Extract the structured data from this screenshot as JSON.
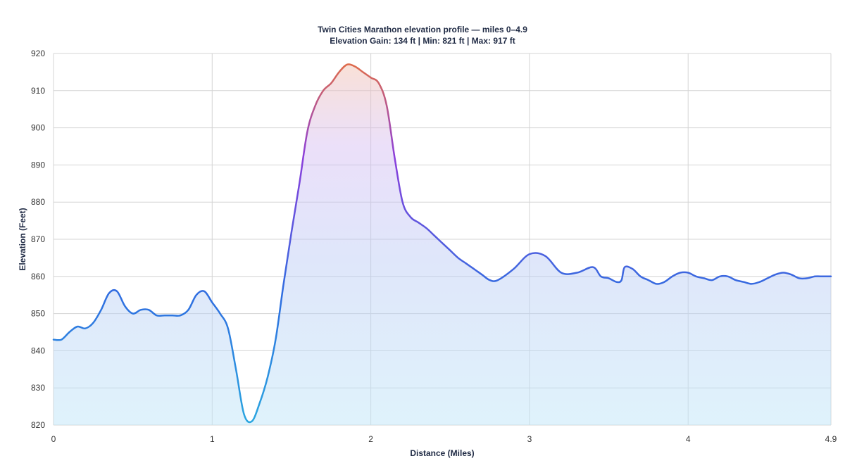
{
  "chart_data": {
    "type": "area",
    "title": "Twin Cities Marathon elevation profile — miles 0–4.9",
    "subtitle": "Elevation Gain: 134 ft | Min: 821 ft | Max: 917 ft",
    "xlabel": "Distance (Miles)",
    "ylabel": "Elevation (Feet)",
    "xlim": [
      0,
      4.9
    ],
    "ylim": [
      820,
      920
    ],
    "x_ticks": [
      0,
      1,
      2,
      3,
      4,
      4.9
    ],
    "x_tick_labels": [
      "0",
      "1",
      "2",
      "3",
      "4",
      "4.9"
    ],
    "y_ticks": [
      820,
      830,
      840,
      850,
      860,
      870,
      880,
      890,
      900,
      910,
      920
    ],
    "y_tick_labels": [
      "820",
      "830",
      "840",
      "850",
      "860",
      "870",
      "880",
      "890",
      "900",
      "910",
      "920"
    ],
    "grid": true,
    "legend": "none",
    "colors": {
      "low": "#2aa7e0",
      "mid": "#2f6ee0",
      "high_mid": "#8b3fdc",
      "peak": "#e8703a"
    },
    "series": [
      {
        "x": [
          0,
          0.05,
          0.1,
          0.15,
          0.2,
          0.25,
          0.3,
          0.35,
          0.4,
          0.45,
          0.5,
          0.55,
          0.6,
          0.65,
          0.7,
          0.75,
          0.8,
          0.85,
          0.9,
          0.95,
          1.0,
          1.05,
          1.1,
          1.15,
          1.2,
          1.25,
          1.3,
          1.35,
          1.4,
          1.45,
          1.5,
          1.55,
          1.6,
          1.65,
          1.7,
          1.75,
          1.8,
          1.85,
          1.9,
          1.95,
          2.0,
          2.05,
          2.1,
          2.15,
          2.2,
          2.25,
          2.3,
          2.35,
          2.4,
          2.45,
          2.5,
          2.55,
          2.6,
          2.65,
          2.7,
          2.75,
          2.8,
          2.9,
          3.0,
          3.1,
          3.2,
          3.3,
          3.4,
          3.45,
          3.5,
          3.55,
          3.58,
          3.6,
          3.65,
          3.7,
          3.75,
          3.8,
          3.85,
          3.9,
          3.95,
          4.0,
          4.05,
          4.1,
          4.15,
          4.2,
          4.25,
          4.3,
          4.35,
          4.4,
          4.45,
          4.5,
          4.55,
          4.6,
          4.65,
          4.7,
          4.75,
          4.8,
          4.85,
          4.9
        ],
        "values": [
          843,
          843,
          845,
          846.5,
          846,
          847.5,
          851,
          855.5,
          856,
          852,
          850,
          851,
          851,
          849.5,
          849.5,
          849.5,
          849.5,
          851,
          855,
          856,
          853,
          850,
          846,
          835,
          823,
          821,
          826,
          833,
          843,
          858,
          872,
          885,
          899,
          906,
          910,
          912,
          915,
          917,
          916.5,
          915,
          913.5,
          912,
          906,
          892,
          880,
          876,
          874.5,
          873,
          871,
          869,
          867,
          865,
          863.5,
          862,
          860.5,
          859,
          859,
          862,
          866,
          865.5,
          861,
          861,
          862.5,
          860,
          859.5,
          858.5,
          859,
          862.5,
          862,
          860,
          859,
          858,
          858.5,
          860,
          861,
          861,
          860,
          859.5,
          859,
          860,
          860,
          859,
          858.5,
          858,
          858.5,
          859.5,
          860.5,
          861,
          860.5,
          859.5,
          859.5,
          860,
          860,
          860
        ]
      }
    ]
  }
}
